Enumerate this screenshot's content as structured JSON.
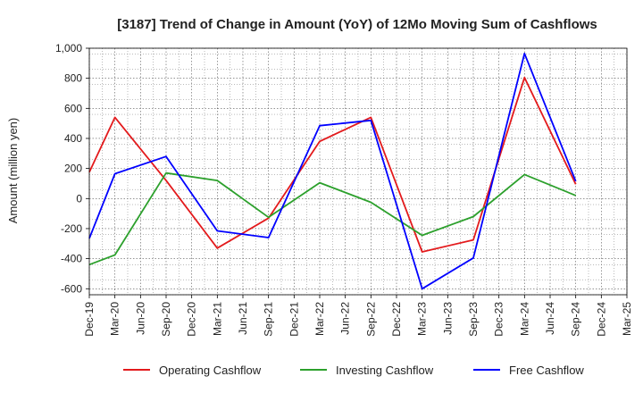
{
  "chart_data": {
    "type": "line",
    "title": "[3187]  Trend of Change in Amount (YoY) of 12Mo Moving Sum of Cashflows",
    "xlabel": "",
    "ylabel": "Amount (million yen)",
    "ylim": [
      -640,
      1000
    ],
    "yticks": [
      -600,
      -400,
      -200,
      0,
      200,
      400,
      600,
      800,
      1000
    ],
    "ytick_labels": [
      "-600",
      "-400",
      "-200",
      "0",
      "200",
      "400",
      "600",
      "800",
      "1,000"
    ],
    "categories": [
      "Dec-19",
      "Mar-20",
      "Jun-20",
      "Sep-20",
      "Dec-20",
      "Mar-21",
      "Jun-21",
      "Sep-21",
      "Dec-21",
      "Mar-22",
      "Jun-22",
      "Sep-22",
      "Dec-22",
      "Mar-23",
      "Jun-23",
      "Sep-23",
      "Dec-23",
      "Mar-24",
      "Jun-24",
      "Sep-24",
      "Dec-24",
      "Mar-25"
    ],
    "grid": true,
    "legend_position": "bottom",
    "series": [
      {
        "name": "Operating Cashflow",
        "color": "#e31a1c",
        "values": [
          175,
          540,
          null,
          120,
          null,
          -330,
          null,
          -130,
          null,
          380,
          null,
          540,
          null,
          -355,
          null,
          -275,
          null,
          805,
          null,
          95,
          null,
          null
        ]
      },
      {
        "name": "Investing Cashflow",
        "color": "#2ca02c",
        "values": [
          -440,
          -375,
          null,
          170,
          null,
          120,
          null,
          -125,
          null,
          105,
          null,
          -25,
          null,
          -245,
          null,
          -120,
          null,
          160,
          null,
          20,
          null,
          null
        ]
      },
      {
        "name": "Free Cashflow",
        "color": "#0000ff",
        "values": [
          -265,
          165,
          null,
          280,
          null,
          -215,
          null,
          -260,
          null,
          485,
          null,
          520,
          null,
          -600,
          null,
          -395,
          null,
          965,
          null,
          115,
          null,
          null
        ]
      }
    ]
  }
}
